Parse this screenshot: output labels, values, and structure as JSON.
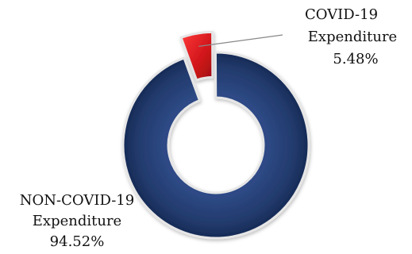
{
  "chart_data": {
    "type": "pie",
    "style": "donut",
    "slices": [
      {
        "name_line1": "COVID-19",
        "name_line2": "Expenditure",
        "percent_label": "5.48%",
        "value": 5.48,
        "color": "#d0151a",
        "exploded": true
      },
      {
        "name_line1": "NON-COVID-19",
        "name_line2": "Expenditure",
        "percent_label": "94.52%",
        "value": 94.52,
        "color": "#233a6d",
        "exploded": false
      }
    ]
  }
}
